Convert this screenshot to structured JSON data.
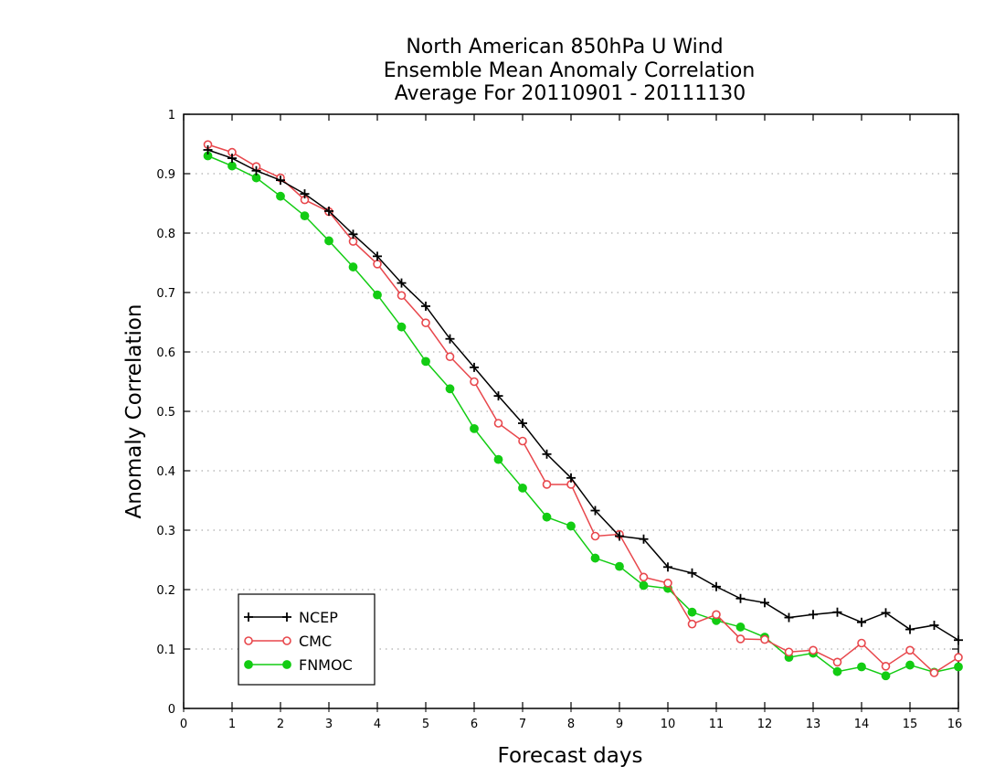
{
  "chart_data": {
    "type": "line",
    "title_lines": [
      "North American 850hPa U Wind",
      "Ensemble Mean Anomaly Correlation",
      "Average For 20110901 - 20111130"
    ],
    "xlabel": "Forecast days",
    "ylabel": "Anomaly Correlation",
    "xlim": [
      0,
      16
    ],
    "ylim": [
      0,
      1
    ],
    "xticks": [
      "0",
      "1",
      "2",
      "3",
      "4",
      "5",
      "6",
      "7",
      "8",
      "9",
      "10",
      "11",
      "12",
      "13",
      "14",
      "15",
      "16"
    ],
    "yticks": [
      "0",
      "0.1",
      "0.2",
      "0.3",
      "0.4",
      "0.5",
      "0.6",
      "0.7",
      "0.8",
      "0.9",
      "1"
    ],
    "grid": "horizontal dotted",
    "legend_position": "bottom-left",
    "x": [
      0.5,
      1,
      1.5,
      2,
      2.5,
      3,
      3.5,
      4,
      4.5,
      5,
      5.5,
      6,
      6.5,
      7,
      7.5,
      8,
      8.5,
      9,
      9.5,
      10,
      10.5,
      11,
      11.5,
      12,
      12.5,
      13,
      13.5,
      14,
      14.5,
      15,
      15.5,
      16
    ],
    "series": [
      {
        "name": "NCEP",
        "color": "#000000",
        "marker": "plus",
        "values": [
          0.94,
          0.926,
          0.905,
          0.889,
          0.866,
          0.837,
          0.798,
          0.761,
          0.716,
          0.677,
          0.622,
          0.574,
          0.526,
          0.48,
          0.428,
          0.388,
          0.333,
          0.29,
          0.285,
          0.238,
          0.228,
          0.205,
          0.185,
          0.178,
          0.153,
          0.158,
          0.162,
          0.145,
          0.161,
          0.133,
          0.14,
          0.115
        ]
      },
      {
        "name": "CMC",
        "color": "#e8474c",
        "marker": "open-circle",
        "values": [
          0.949,
          0.936,
          0.912,
          0.893,
          0.856,
          0.836,
          0.786,
          0.748,
          0.695,
          0.649,
          0.592,
          0.55,
          0.48,
          0.45,
          0.377,
          0.377,
          0.29,
          0.293,
          0.221,
          0.211,
          0.142,
          0.158,
          0.117,
          0.116,
          0.095,
          0.098,
          0.078,
          0.11,
          0.071,
          0.098,
          0.06,
          0.086
        ]
      },
      {
        "name": "FNMOC",
        "color": "#13cc13",
        "marker": "filled-circle",
        "values": [
          0.93,
          0.913,
          0.893,
          0.862,
          0.829,
          0.787,
          0.743,
          0.696,
          0.642,
          0.584,
          0.538,
          0.471,
          0.419,
          0.371,
          0.322,
          0.307,
          0.253,
          0.239,
          0.207,
          0.202,
          0.162,
          0.148,
          0.137,
          0.12,
          0.086,
          0.093,
          0.062,
          0.07,
          0.055,
          0.073,
          0.061,
          0.07
        ]
      }
    ]
  }
}
